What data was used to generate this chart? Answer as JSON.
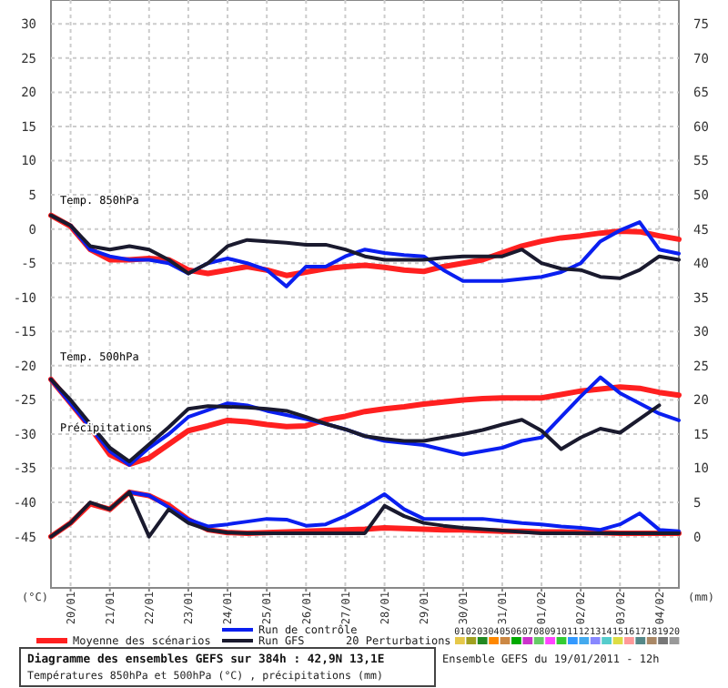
{
  "chart_data": {
    "type": "line",
    "title": "Diagramme des ensembles GEFS sur 384h : 42,9N 13,1E",
    "subtitle": "Températures 850hPa et 500hPa (°C) , précipitations (mm)",
    "ylabel": "(°C)",
    "y2label": "(mm)",
    "x": [
      "2011-01-19T12:00",
      "2011-01-20T00:00",
      "2011-01-20T12:00",
      "2011-01-21T00:00",
      "2011-01-21T12:00",
      "2011-01-22T00:00",
      "2011-01-22T12:00",
      "2011-01-23T00:00",
      "2011-01-23T12:00",
      "2011-01-24T00:00",
      "2011-01-24T12:00",
      "2011-01-25T00:00",
      "2011-01-25T12:00",
      "2011-01-26T00:00",
      "2011-01-26T12:00",
      "2011-01-27T00:00",
      "2011-01-27T12:00",
      "2011-01-28T00:00",
      "2011-01-28T12:00",
      "2011-01-29T00:00",
      "2011-01-29T12:00",
      "2011-01-30T00:00",
      "2011-01-30T12:00",
      "2011-01-31T00:00",
      "2011-01-31T12:00",
      "2011-02-01T00:00",
      "2011-02-01T12:00",
      "2011-02-02T00:00",
      "2011-02-02T12:00",
      "2011-02-03T00:00",
      "2011-02-03T12:00",
      "2011-02-04T00:00",
      "2011-02-04T12:00"
    ],
    "xlim": [
      "2011-01-19T12:00",
      "2011-02-04T12:00"
    ],
    "xticks": [
      {
        "value": "2011-01-20",
        "label": "20/01"
      },
      {
        "value": "2011-01-21",
        "label": "21/01"
      },
      {
        "value": "2011-01-22",
        "label": "22/01"
      },
      {
        "value": "2011-01-23",
        "label": "23/01"
      },
      {
        "value": "2011-01-24",
        "label": "24/01"
      },
      {
        "value": "2011-01-25",
        "label": "25/01"
      },
      {
        "value": "2011-01-26",
        "label": "26/01"
      },
      {
        "value": "2011-01-27",
        "label": "27/01"
      },
      {
        "value": "2011-01-28",
        "label": "28/01"
      },
      {
        "value": "2011-01-29",
        "label": "29/01"
      },
      {
        "value": "2011-01-30",
        "label": "30/01"
      },
      {
        "value": "2011-01-31",
        "label": "31/01"
      },
      {
        "value": "2011-02-01",
        "label": "01/02"
      },
      {
        "value": "2011-02-02",
        "label": "02/02"
      },
      {
        "value": "2011-02-03",
        "label": "03/02"
      },
      {
        "value": "2011-02-04",
        "label": "04/02"
      }
    ],
    "ylim": [
      -52.5,
      33.5
    ],
    "yticks": [
      -45,
      -40,
      -35,
      -30,
      -25,
      -20,
      -15,
      -10,
      -5,
      0,
      5,
      10,
      15,
      20,
      25,
      30
    ],
    "y2lim": [
      -7.5,
      78.5
    ],
    "y2ticks": [
      0,
      5,
      10,
      15,
      20,
      25,
      30,
      35,
      40,
      45,
      50,
      55,
      60,
      65,
      70,
      75
    ],
    "grid": true,
    "legend": "bottom",
    "series": [
      {
        "name": "Moyenne des scénarios",
        "color": "#ff2020",
        "values": [
          2,
          0.4,
          -3,
          -4.5,
          -4.5,
          -4.3,
          -4.5,
          -6,
          -6.5,
          -6,
          -5.5,
          -6,
          -6.8,
          -6.3,
          -5.8,
          -5.5,
          -5.3,
          -5.6,
          -6,
          -6.2,
          -5.5,
          -5,
          -4.5,
          -3.5,
          -2.5,
          -1.8,
          -1.3,
          -1,
          -0.6,
          -0.3,
          -0.4,
          -1,
          -1.5
        ]
      },
      {
        "name": "Run de contrôle",
        "color": "#0a1ff0",
        "values": [
          null,
          0.5,
          -3,
          -4,
          -4.5,
          -4.5,
          -5,
          -6.5,
          -5,
          -4.3,
          -5,
          -6,
          -8.4,
          -5.5,
          -5.5,
          -4,
          -3,
          -3.5,
          -3.8,
          -4,
          -6,
          -7.6,
          -7.6,
          -7.6,
          -7.3,
          -7,
          -6.3,
          -5,
          -1.8,
          -0.2,
          1,
          -3,
          -3.6
        ]
      },
      {
        "name": "Run GFS",
        "color": "#1a1a2e",
        "values": [
          2,
          0.5,
          -2.5,
          -3,
          -2.5,
          -3,
          -4.5,
          -6.5,
          -5,
          -2.5,
          -1.6,
          -1.8,
          -2,
          -2.3,
          -2.3,
          -3,
          -4,
          -4.5,
          -4.5,
          -4.5,
          -4.2,
          -4,
          -4,
          -4,
          -3,
          -5,
          -5.8,
          -6,
          -7,
          -7.2,
          -6,
          -4,
          -4.5
        ]
      },
      {
        "color": "#ff2020",
        "values": [
          -22,
          -25.5,
          -29,
          -33,
          -34.4,
          -33.5,
          -31.5,
          -29.5,
          -28.8,
          -28,
          -28.2,
          -28.6,
          -28.9,
          -28.8,
          -27.9,
          -27.4,
          -26.7,
          -26.3,
          -26,
          -25.6,
          -25.3,
          -25,
          -24.8,
          -24.7,
          -24.7,
          -24.7,
          -24.2,
          -23.7,
          -23.4,
          -23.1,
          -23.3,
          -23.9,
          -24.3
        ]
      },
      {
        "color": "#0a1ff0",
        "values": [
          -22,
          -25.5,
          -29,
          -32.5,
          -34.5,
          -32,
          -30,
          -27.5,
          -26.5,
          -25.5,
          -25.8,
          -26.6,
          -27.2,
          -27.8,
          -28.5,
          -29.3,
          -30.3,
          -31,
          -31.3,
          -31.6,
          -32.3,
          -33,
          -32.5,
          -32,
          -31,
          -30.5,
          -27.5,
          -24.5,
          -21.7,
          -24,
          -25.5,
          -27,
          -28
        ]
      },
      {
        "color": "#1a1a2e",
        "values": [
          -22,
          -25,
          -28.5,
          -32,
          -34,
          -31.5,
          -29,
          -26.3,
          -25.9,
          -26,
          -26.1,
          -26.3,
          -26.6,
          -27.5,
          -28.5,
          -29.3,
          -30.3,
          -30.7,
          -31,
          -31,
          -30.5,
          -30,
          -29.4,
          -28.6,
          -27.9,
          -29.5,
          -32.2,
          -30.5,
          -29.2,
          -29.8,
          -27.8,
          -25.8,
          null
        ]
      },
      {
        "color": "#ff2020",
        "axis": "y2",
        "values": [
          0,
          2,
          4.8,
          4,
          6.5,
          6,
          4.6,
          2.5,
          1,
          0.6,
          0.5,
          0.6,
          0.7,
          0.8,
          0.9,
          1,
          1.1,
          1.3,
          1.2,
          1.1,
          1,
          1,
          0.9,
          0.8,
          0.8,
          0.7,
          0.7,
          0.6,
          0.6,
          0.5,
          0.5,
          0.5,
          0.5
        ]
      },
      {
        "color": "#0a1ff0",
        "axis": "y2",
        "values": [
          null,
          null,
          null,
          null,
          6.5,
          6,
          4.3,
          2.5,
          1.5,
          1.8,
          2.2,
          2.6,
          2.5,
          1.6,
          1.8,
          3,
          4.5,
          6.2,
          4,
          2.6,
          2.6,
          2.6,
          2.6,
          2.3,
          2,
          1.8,
          1.5,
          1.3,
          1,
          1.8,
          3.4,
          1,
          0.8
        ]
      },
      {
        "color": "#1a1a2e",
        "axis": "y2",
        "values": [
          0,
          2,
          5,
          4,
          6.5,
          0,
          4,
          2,
          1,
          0.6,
          0.5,
          0.5,
          0.5,
          0.5,
          0.5,
          0.5,
          0.5,
          4.5,
          3,
          2,
          1.6,
          1.3,
          1.1,
          0.9,
          0.7,
          0.5,
          0.5,
          0.5,
          0.5,
          0.5,
          0.5,
          0.5,
          0.5
        ]
      }
    ],
    "annotations": [
      "Ensemble GEFS du 19/01/2011 - 12h",
      "20 Perturbations",
      "01",
      "02",
      "03",
      "04",
      "05",
      "06",
      "07",
      "08",
      "09",
      "10",
      "11",
      "12",
      "13",
      "14",
      "15",
      "16",
      "17",
      "18",
      "19",
      "20",
      "Temp. 850hPa",
      "Temp. 500hPa",
      "Précipitations"
    ]
  }
}
